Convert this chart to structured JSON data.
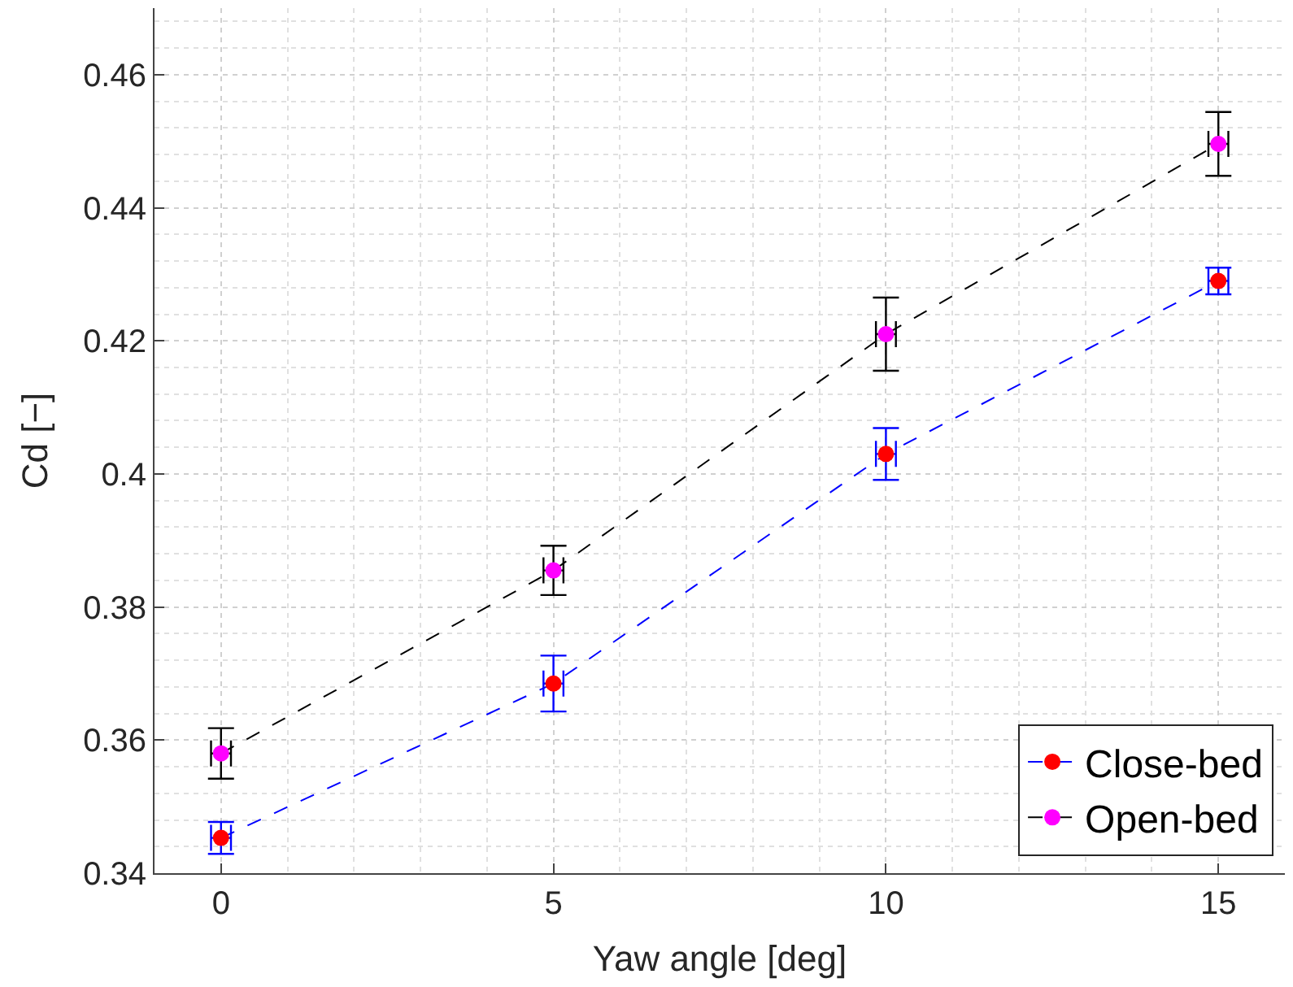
{
  "chart_data": {
    "type": "line",
    "xlabel": "Yaw angle [deg]",
    "ylabel": "Cd [−]",
    "x": [
      0,
      5,
      10,
      15
    ],
    "xlim": [
      -1,
      16
    ],
    "xticks": [
      0,
      5,
      10,
      15
    ],
    "ylim": [
      0.34,
      0.47
    ],
    "yticks": [
      0.34,
      0.36,
      0.38,
      0.4,
      0.42,
      0.44,
      0.46
    ],
    "grid": true,
    "legend": "bottom right",
    "marker": "circle",
    "line_style": "dashed",
    "series": [
      {
        "name": "Close-bed",
        "color": "#0000ff",
        "colors": [
          "#ff0000",
          "#ff0000",
          "#ff0000",
          "#ff0000"
        ],
        "values": [
          0.3453,
          0.3685,
          0.403,
          0.429
        ],
        "errors": [
          0.0024,
          0.0042,
          0.0039,
          0.002
        ],
        "xerrors": [
          0.15,
          0.15,
          0.15,
          0.15
        ]
      },
      {
        "name": "Open-bed",
        "color": "#000000",
        "colors": [
          "#ff00ff",
          "#ff00ff",
          "#ff00ff",
          "#ff00ff"
        ],
        "values": [
          0.358,
          0.3855,
          0.421,
          0.4496
        ],
        "errors": [
          0.0038,
          0.0037,
          0.0055,
          0.0048
        ],
        "xerrors": [
          0.15,
          0.15,
          0.15,
          0.15
        ]
      }
    ]
  }
}
